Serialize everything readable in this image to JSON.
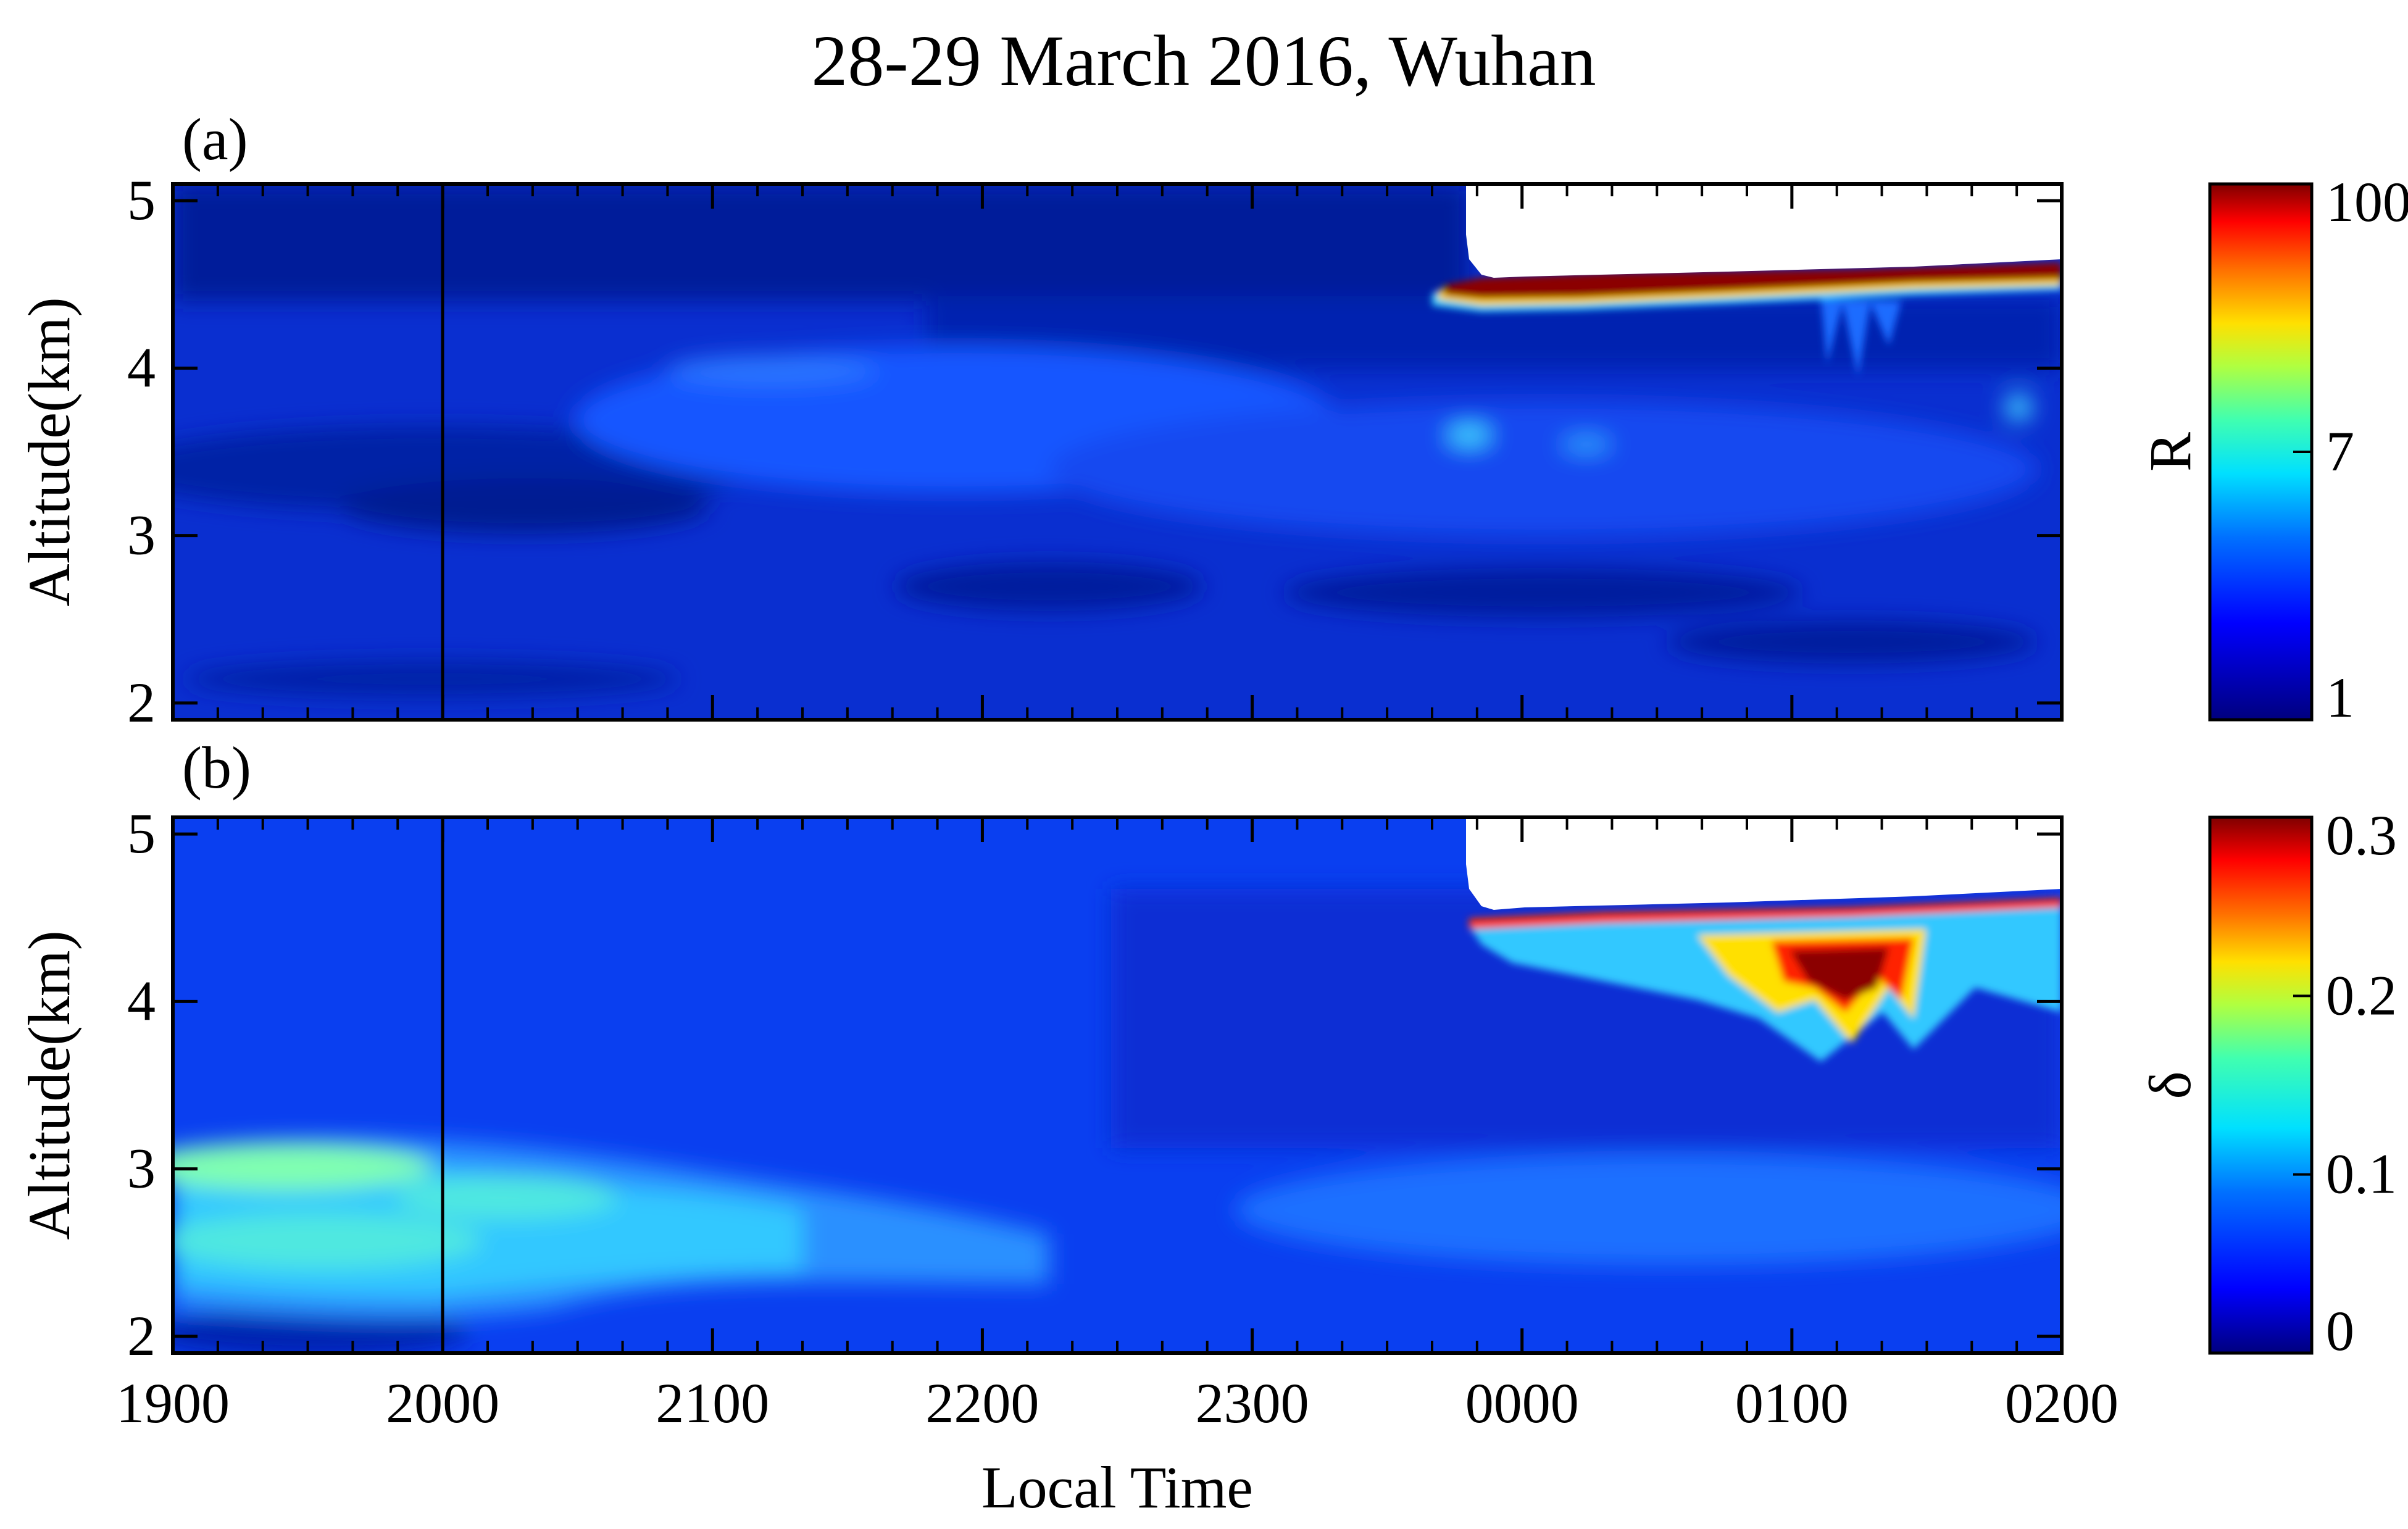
{
  "chart_data": [
    {
      "id": "a",
      "type": "heatmap",
      "title": "28-29 March 2016, Wuhan",
      "panel_label": "(a)",
      "xlabel": "",
      "ylabel": "Altitude(km)",
      "ylim": [
        1.9,
        5.1
      ],
      "yticks": [
        2,
        3,
        4,
        5
      ],
      "x_ticks": [
        "1900",
        "2000",
        "2100",
        "2200",
        "2300",
        "0000",
        "0100",
        "0200"
      ],
      "x_range_hours": [
        19,
        26
      ],
      "vertical_marker_hour": 20,
      "colorbar": {
        "label": "R",
        "ticks": [
          "1",
          "7",
          "100"
        ],
        "scale": "nonlinear"
      },
      "features": [
        {
          "name": "cloud layer (R ≈ 100)",
          "start_hour": 23.75,
          "end_hour": 26,
          "base_km": 4.35,
          "top_km": 4.55
        },
        {
          "name": "no data above cloud top",
          "start_hour": 23.8,
          "end_hour": 26
        }
      ]
    },
    {
      "id": "b",
      "type": "heatmap",
      "panel_label": "(b)",
      "xlabel": "Local Time",
      "ylabel": "Altitude(km)",
      "ylim": [
        1.9,
        5.1
      ],
      "yticks": [
        2,
        3,
        4,
        5
      ],
      "x_ticks": [
        "1900",
        "2000",
        "2100",
        "2200",
        "2300",
        "0000",
        "0100",
        "0200"
      ],
      "x_range_hours": [
        19,
        26
      ],
      "vertical_marker_hour": 20,
      "colorbar": {
        "label": "δ",
        "ticks": [
          "0",
          "0.1",
          "0.2",
          "0.3"
        ],
        "range": [
          0,
          0.3
        ]
      },
      "features": [
        {
          "name": "dust layer (δ ≈ 0.1–0.15)",
          "start_hour": 19,
          "end_hour": 21.2,
          "base_km": 2.2,
          "top_km": 3.2
        },
        {
          "name": "cloud depolarization (δ up to 0.3)",
          "start_hour": 24.6,
          "end_hour": 25.5,
          "base_km": 3.8,
          "top_km": 4.4
        }
      ]
    }
  ],
  "colors": {
    "low": "#00008b",
    "mid": "#0a46ff",
    "high": "#8b0000",
    "no_data": "#ffffff",
    "axis": "#000000"
  }
}
